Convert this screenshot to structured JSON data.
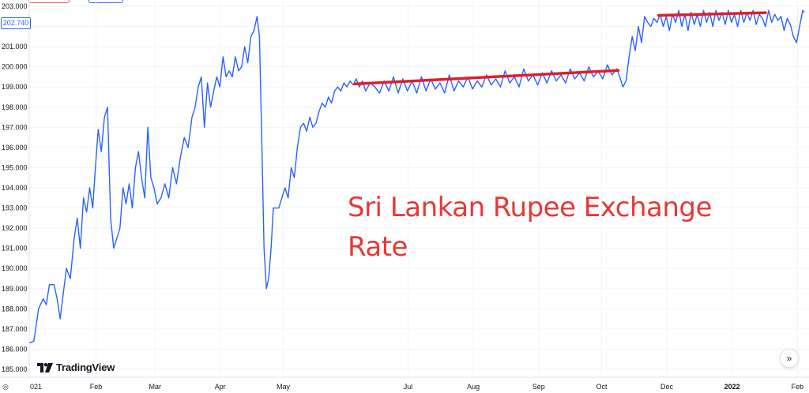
{
  "annotation": {
    "line1": "Sri Lankan Rupee Exchange",
    "line2": "Rate"
  },
  "price_label": "202.740",
  "brand": "TradingView",
  "icons": {
    "scroll": "chevron-double-right-icon",
    "settings": "gear-icon"
  },
  "colors": {
    "series": "#2962ff",
    "trendline": "#e01e2b",
    "annotation": "#e53935",
    "grid": "#f0f3fa"
  },
  "chart_data": {
    "type": "line",
    "title": "",
    "xlabel": "",
    "ylabel": "",
    "ylim": [
      185.0,
      203.0
    ],
    "yticks": [
      "185.000",
      "186.000",
      "187.000",
      "188.000",
      "189.000",
      "190.000",
      "191.000",
      "192.000",
      "193.000",
      "194.000",
      "195.000",
      "196.000",
      "197.000",
      "198.000",
      "199.000",
      "200.000",
      "201.000",
      "202.000",
      "203.000"
    ],
    "xticks": [
      {
        "label": "021",
        "pos": 0.0
      },
      {
        "label": "Feb",
        "pos": 0.0862
      },
      {
        "label": "Mar",
        "pos": 0.1623
      },
      {
        "label": "Apr",
        "pos": 0.2465
      },
      {
        "label": "May",
        "pos": 0.3277
      },
      {
        "label": "Jul",
        "pos": 0.4888
      },
      {
        "label": "Aug",
        "pos": 0.573
      },
      {
        "label": "Sep",
        "pos": 0.6572
      },
      {
        "label": "Oct",
        "pos": 0.7386
      },
      {
        "label": "Dec",
        "pos": 0.8226
      },
      {
        "label": "2022",
        "pos": 0.9069,
        "bold": true
      },
      {
        "label": "Feb",
        "pos": 0.9912
      }
    ],
    "grid": true,
    "series": [
      {
        "points": [
          [
            0.0,
            186.3
          ],
          [
            0.006,
            186.4
          ],
          [
            0.012,
            188.0
          ],
          [
            0.018,
            188.5
          ],
          [
            0.022,
            188.2
          ],
          [
            0.026,
            189.2
          ],
          [
            0.032,
            189.2
          ],
          [
            0.036,
            188.5
          ],
          [
            0.04,
            187.5
          ],
          [
            0.044,
            188.8
          ],
          [
            0.048,
            190.0
          ],
          [
            0.053,
            189.5
          ],
          [
            0.058,
            191.5
          ],
          [
            0.062,
            192.5
          ],
          [
            0.066,
            191.0
          ],
          [
            0.07,
            193.5
          ],
          [
            0.074,
            192.8
          ],
          [
            0.078,
            194.0
          ],
          [
            0.082,
            193.0
          ],
          [
            0.085,
            194.8
          ],
          [
            0.089,
            196.9
          ],
          [
            0.093,
            195.8
          ],
          [
            0.097,
            197.5
          ],
          [
            0.101,
            198.0
          ],
          [
            0.105,
            192.5
          ],
          [
            0.109,
            191.0
          ],
          [
            0.113,
            191.5
          ],
          [
            0.117,
            192.0
          ],
          [
            0.121,
            194.0
          ],
          [
            0.125,
            193.2
          ],
          [
            0.129,
            194.2
          ],
          [
            0.133,
            193.0
          ],
          [
            0.137,
            195.0
          ],
          [
            0.141,
            195.8
          ],
          [
            0.145,
            194.5
          ],
          [
            0.149,
            193.5
          ],
          [
            0.153,
            197.0
          ],
          [
            0.157,
            194.5
          ],
          [
            0.161,
            194.0
          ],
          [
            0.165,
            193.2
          ],
          [
            0.17,
            193.5
          ],
          [
            0.175,
            194.2
          ],
          [
            0.18,
            193.5
          ],
          [
            0.185,
            195.0
          ],
          [
            0.19,
            194.2
          ],
          [
            0.195,
            195.5
          ],
          [
            0.2,
            196.5
          ],
          [
            0.205,
            196.0
          ],
          [
            0.21,
            197.5
          ],
          [
            0.214,
            198.0
          ],
          [
            0.218,
            199.0
          ],
          [
            0.222,
            199.5
          ],
          [
            0.226,
            197.0
          ],
          [
            0.23,
            199.2
          ],
          [
            0.234,
            198.0
          ],
          [
            0.238,
            198.8
          ],
          [
            0.242,
            199.5
          ],
          [
            0.246,
            199.0
          ],
          [
            0.25,
            200.5
          ],
          [
            0.254,
            199.5
          ],
          [
            0.258,
            199.8
          ],
          [
            0.262,
            199.5
          ],
          [
            0.266,
            200.5
          ],
          [
            0.27,
            199.8
          ],
          [
            0.274,
            200.0
          ],
          [
            0.278,
            201.0
          ],
          [
            0.282,
            200.2
          ],
          [
            0.286,
            201.5
          ],
          [
            0.29,
            201.8
          ],
          [
            0.294,
            202.5
          ],
          [
            0.297,
            201.5
          ],
          [
            0.3,
            196.5
          ],
          [
            0.303,
            191.0
          ],
          [
            0.306,
            189.0
          ],
          [
            0.309,
            189.5
          ],
          [
            0.312,
            191.0
          ],
          [
            0.315,
            193.0
          ],
          [
            0.318,
            193.0
          ],
          [
            0.322,
            193.0
          ],
          [
            0.326,
            193.5
          ],
          [
            0.33,
            194.0
          ],
          [
            0.334,
            193.5
          ],
          [
            0.338,
            195.0
          ],
          [
            0.342,
            194.5
          ],
          [
            0.346,
            196.0
          ],
          [
            0.35,
            197.0
          ],
          [
            0.354,
            197.2
          ],
          [
            0.358,
            196.8
          ],
          [
            0.362,
            197.5
          ],
          [
            0.366,
            197.0
          ],
          [
            0.37,
            197.2
          ],
          [
            0.374,
            197.8
          ],
          [
            0.378,
            198.2
          ],
          [
            0.382,
            198.0
          ],
          [
            0.386,
            198.5
          ],
          [
            0.39,
            198.2
          ],
          [
            0.394,
            198.8
          ],
          [
            0.398,
            199.0
          ],
          [
            0.402,
            198.8
          ],
          [
            0.406,
            199.2
          ],
          [
            0.41,
            199.0
          ],
          [
            0.414,
            199.3
          ],
          [
            0.418,
            199.1
          ],
          [
            0.422,
            199.4
          ],
          [
            0.426,
            199.0
          ],
          [
            0.43,
            199.3
          ],
          [
            0.434,
            198.8
          ],
          [
            0.44,
            199.2
          ],
          [
            0.446,
            199.0
          ],
          [
            0.452,
            198.7
          ],
          [
            0.458,
            199.3
          ],
          [
            0.464,
            198.8
          ],
          [
            0.47,
            199.5
          ],
          [
            0.476,
            198.7
          ],
          [
            0.482,
            199.4
          ],
          [
            0.488,
            198.8
          ],
          [
            0.494,
            199.3
          ],
          [
            0.5,
            198.7
          ],
          [
            0.506,
            199.5
          ],
          [
            0.512,
            198.8
          ],
          [
            0.518,
            199.4
          ],
          [
            0.524,
            198.9
          ],
          [
            0.53,
            199.2
          ],
          [
            0.536,
            198.7
          ],
          [
            0.542,
            199.6
          ],
          [
            0.548,
            198.8
          ],
          [
            0.554,
            199.3
          ],
          [
            0.56,
            199.0
          ],
          [
            0.566,
            199.5
          ],
          [
            0.572,
            198.9
          ],
          [
            0.578,
            199.3
          ],
          [
            0.584,
            199.0
          ],
          [
            0.59,
            199.6
          ],
          [
            0.596,
            199.1
          ],
          [
            0.602,
            199.4
          ],
          [
            0.608,
            199.0
          ],
          [
            0.614,
            199.8
          ],
          [
            0.62,
            199.2
          ],
          [
            0.626,
            199.5
          ],
          [
            0.632,
            199.0
          ],
          [
            0.638,
            199.9
          ],
          [
            0.644,
            199.3
          ],
          [
            0.65,
            199.6
          ],
          [
            0.656,
            199.1
          ],
          [
            0.662,
            199.7
          ],
          [
            0.668,
            199.2
          ],
          [
            0.674,
            199.8
          ],
          [
            0.68,
            199.3
          ],
          [
            0.686,
            199.6
          ],
          [
            0.692,
            199.2
          ],
          [
            0.698,
            199.9
          ],
          [
            0.704,
            199.4
          ],
          [
            0.71,
            199.7
          ],
          [
            0.716,
            199.3
          ],
          [
            0.722,
            200.0
          ],
          [
            0.728,
            199.5
          ],
          [
            0.734,
            199.8
          ],
          [
            0.74,
            199.4
          ],
          [
            0.746,
            200.1
          ],
          [
            0.752,
            199.6
          ],
          [
            0.758,
            199.9
          ],
          [
            0.762,
            199.5
          ],
          [
            0.766,
            199.0
          ],
          [
            0.77,
            199.3
          ],
          [
            0.774,
            200.5
          ],
          [
            0.778,
            201.5
          ],
          [
            0.782,
            200.8
          ],
          [
            0.786,
            202.0
          ],
          [
            0.79,
            201.2
          ],
          [
            0.794,
            202.5
          ],
          [
            0.798,
            202.2
          ],
          [
            0.802,
            202.0
          ],
          [
            0.806,
            202.4
          ],
          [
            0.81,
            202.2
          ],
          [
            0.814,
            202.6
          ],
          [
            0.818,
            202.0
          ],
          [
            0.822,
            202.5
          ],
          [
            0.826,
            201.8
          ],
          [
            0.83,
            202.6
          ],
          [
            0.834,
            202.2
          ],
          [
            0.838,
            202.8
          ],
          [
            0.842,
            202.0
          ],
          [
            0.846,
            202.6
          ],
          [
            0.85,
            201.8
          ],
          [
            0.854,
            202.7
          ],
          [
            0.858,
            202.1
          ],
          [
            0.862,
            202.6
          ],
          [
            0.866,
            202.0
          ],
          [
            0.87,
            202.8
          ],
          [
            0.874,
            202.2
          ],
          [
            0.878,
            202.7
          ],
          [
            0.882,
            202.0
          ],
          [
            0.886,
            202.8
          ],
          [
            0.89,
            202.3
          ],
          [
            0.894,
            202.7
          ],
          [
            0.898,
            202.1
          ],
          [
            0.902,
            202.8
          ],
          [
            0.906,
            202.2
          ],
          [
            0.91,
            202.6
          ],
          [
            0.914,
            202.0
          ],
          [
            0.918,
            202.8
          ],
          [
            0.922,
            202.2
          ],
          [
            0.926,
            202.7
          ],
          [
            0.93,
            202.3
          ],
          [
            0.934,
            202.8
          ],
          [
            0.938,
            202.1
          ],
          [
            0.942,
            202.6
          ],
          [
            0.946,
            202.4
          ],
          [
            0.95,
            202.0
          ],
          [
            0.954,
            202.8
          ],
          [
            0.958,
            202.2
          ],
          [
            0.962,
            202.6
          ],
          [
            0.966,
            202.3
          ],
          [
            0.97,
            202.5
          ],
          [
            0.974,
            201.8
          ],
          [
            0.978,
            202.4
          ],
          [
            0.982,
            202.1
          ],
          [
            0.986,
            201.5
          ],
          [
            0.99,
            201.2
          ],
          [
            0.994,
            202.0
          ],
          [
            0.998,
            202.8
          ],
          [
            1.0,
            202.7
          ]
        ]
      }
    ],
    "trendlines": [
      {
        "start": [
          0.42,
          199.15
        ],
        "end": [
          0.76,
          199.82
        ]
      },
      {
        "start": [
          0.812,
          202.55
        ],
        "end": [
          0.95,
          202.68
        ]
      }
    ]
  }
}
